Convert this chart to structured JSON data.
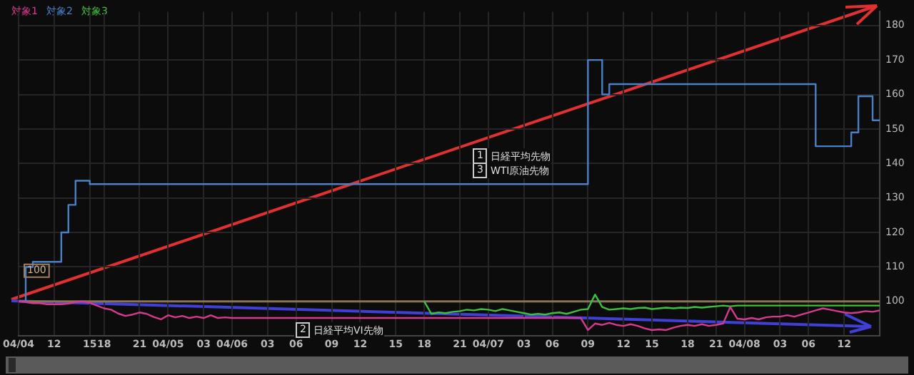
{
  "chart_data": {
    "type": "line",
    "legend": "top left",
    "grid": true,
    "categories": [
      "04/04",
      null,
      null,
      null,
      null,
      "12",
      null,
      null,
      null,
      null,
      "15",
      null,
      "18",
      null,
      null,
      null,
      null,
      "21",
      null,
      null,
      null,
      "04/05",
      null,
      null,
      null,
      null,
      "03",
      null,
      null,
      null,
      "04/06",
      null,
      null,
      null,
      null,
      "03",
      null,
      null,
      null,
      "06",
      null,
      null,
      null,
      null,
      "09",
      null,
      null,
      null,
      "12",
      null,
      null,
      null,
      null,
      "15",
      null,
      null,
      null,
      "18",
      null,
      null,
      null,
      null,
      "21",
      null,
      null,
      null,
      "04/07",
      null,
      null,
      null,
      null,
      "03",
      null,
      null,
      null,
      "06",
      null,
      null,
      null,
      null,
      "09",
      null,
      null,
      null,
      null,
      "12",
      null,
      null,
      null,
      "15",
      null,
      null,
      null,
      null,
      "18",
      null,
      null,
      null,
      "21",
      null,
      null,
      null,
      "04/08",
      null,
      null,
      null,
      null,
      "03",
      null,
      null,
      null,
      "06",
      null,
      null,
      null,
      null,
      "12",
      null,
      null,
      null,
      null,
      null
    ],
    "ylim": [
      90,
      184
    ],
    "yticks": [
      100,
      110,
      120,
      130,
      140,
      150,
      160,
      170,
      180
    ],
    "series": [
      {
        "name": "対象1",
        "color": "#d63a8e",
        "values": [
          100,
          99.8,
          99.5,
          99.5,
          99.2,
          99.2,
          99.2,
          99.4,
          99.8,
          100,
          99.6,
          98.8,
          98,
          97.6,
          96.5,
          95.8,
          96.2,
          96.8,
          96.4,
          95.5,
          94.8,
          96,
          95.4,
          95.8,
          95.2,
          95.6,
          95.2,
          96,
          95.2,
          95.4,
          95.2,
          95.2,
          95.2,
          95.2,
          95.2,
          95.2,
          95.2,
          95.2,
          95.2,
          95.2,
          95.2,
          95.2,
          95.2,
          95.2,
          95.2,
          95.2,
          95.2,
          95.2,
          95.2,
          95.2,
          95.2,
          95.2,
          95.2,
          95.2,
          95.2,
          95.2,
          95.2,
          95.2,
          95.2,
          95.2,
          95.2,
          95.2,
          95.2,
          95.2,
          95.2,
          95.2,
          95.2,
          95.2,
          95.2,
          95.2,
          95.2,
          95.2,
          95.2,
          95.2,
          95.2,
          95.2,
          95.2,
          95.2,
          95.2,
          95.2,
          91.7,
          93.6,
          93.2,
          93.8,
          93.2,
          92.9,
          93.4,
          92.9,
          92.2,
          91.7,
          91.9,
          91.7,
          92.4,
          92.9,
          93.2,
          92.9,
          93.4,
          92.9,
          93.2,
          93.6,
          98.4,
          95,
          94.8,
          95.2,
          94.8,
          95.4,
          95.6,
          95.6,
          96,
          95.6,
          96.2,
          96.8,
          97.4,
          98,
          97.6,
          97.2,
          96.8,
          96.6,
          96.8,
          97.2,
          97,
          97.4
        ]
      },
      {
        "name": "対象2",
        "color": "#4a80c8",
        "type": "step",
        "values": [
          100,
          110,
          111.5,
          111.5,
          111.5,
          111.5,
          120,
          128,
          135,
          135,
          134,
          134,
          134,
          134,
          134,
          134,
          134,
          134,
          134,
          134,
          134,
          134,
          134,
          134,
          134,
          134,
          134,
          134,
          134,
          134,
          134,
          134,
          134,
          134,
          134,
          134,
          134,
          134,
          134,
          134,
          134,
          134,
          134,
          134,
          134,
          134,
          134,
          134,
          134,
          134,
          134,
          134,
          134,
          134,
          134,
          134,
          134,
          134,
          134,
          134,
          134,
          134,
          134,
          134,
          134,
          134,
          134,
          134,
          134,
          134,
          134,
          134,
          134,
          134,
          134,
          134,
          134,
          134,
          134,
          134,
          170,
          170,
          160,
          163,
          163,
          163,
          163,
          163,
          163,
          163,
          163,
          163,
          163,
          163,
          163,
          163,
          163,
          163,
          163,
          163,
          163,
          163,
          163,
          163,
          163,
          163,
          163,
          163,
          163,
          163,
          163,
          163,
          145,
          145,
          145,
          145,
          145,
          149,
          159.5,
          159.5,
          152.5,
          152.5
        ]
      },
      {
        "name": "対象3",
        "color": "#3fbf3f",
        "values": [
          null,
          null,
          null,
          null,
          null,
          null,
          null,
          null,
          null,
          null,
          null,
          null,
          null,
          null,
          null,
          null,
          null,
          null,
          null,
          null,
          null,
          null,
          null,
          null,
          null,
          null,
          null,
          null,
          null,
          null,
          null,
          null,
          null,
          null,
          null,
          null,
          null,
          null,
          null,
          null,
          null,
          null,
          null,
          null,
          null,
          null,
          null,
          null,
          null,
          null,
          null,
          null,
          null,
          null,
          null,
          null,
          null,
          100,
          96.4,
          96.8,
          96.6,
          97,
          97.2,
          97.6,
          97.4,
          97.8,
          97.6,
          97.2,
          97.8,
          97.4,
          97,
          96.6,
          96.2,
          96.4,
          96.2,
          96.6,
          96.8,
          96.4,
          97,
          97.6,
          97.8,
          102,
          98.4,
          97.6,
          97.8,
          98,
          97.8,
          98.1,
          98.2,
          97.8,
          98,
          98.2,
          98,
          98.2,
          98.1,
          98.4,
          98.2,
          98.4,
          98.6,
          98.8,
          98.6,
          98.8,
          98.8,
          98.8,
          98.8,
          98.8,
          98.8,
          98.8,
          98.8,
          98.8,
          98.8,
          98.8,
          98.8,
          98.8,
          98.8,
          98.8,
          98.8,
          98.8,
          98.8,
          98.8,
          98.8,
          98.8
        ]
      }
    ],
    "ref_lines": [
      {
        "axis": "y",
        "value": 100,
        "color": "#8a7355"
      }
    ],
    "annotations": [
      "1 日経平均先物",
      "3 WTI原油先物",
      "2 日経平均VI先物",
      {
        "text": "100",
        "x": "04/04",
        "y": 100
      }
    ]
  }
}
